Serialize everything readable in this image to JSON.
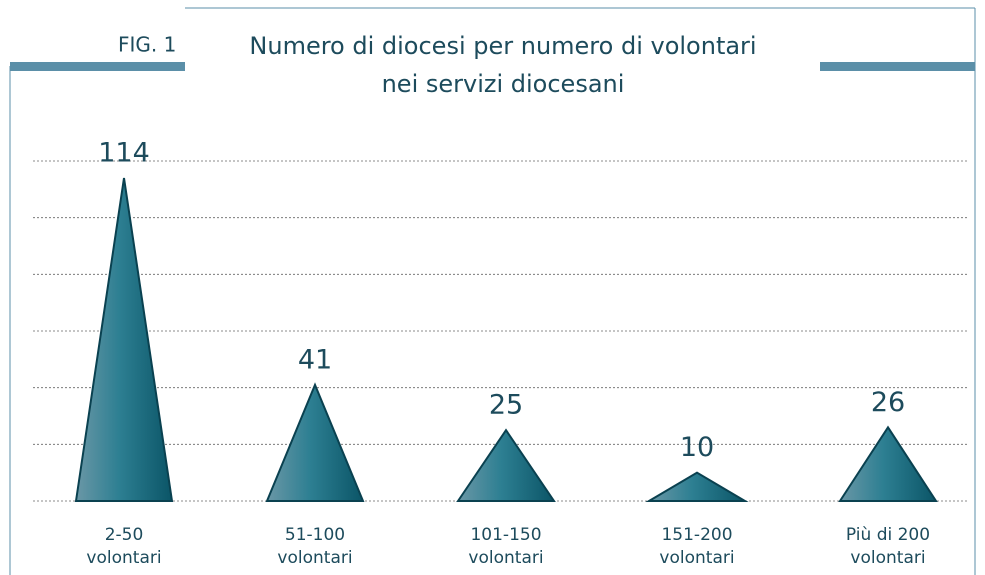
{
  "chart_data": {
    "type": "triangle-bar",
    "figure_label": "FIG. 1",
    "title": [
      "Numero di diocesi per numero di volontari",
      "nei servizi diocesani"
    ],
    "categories": [
      [
        "2-50",
        "volontari"
      ],
      [
        "51-100",
        "volontari"
      ],
      [
        "101-150",
        "volontari"
      ],
      [
        "151-200",
        "volontari"
      ],
      [
        "Più di 200",
        "volontari"
      ]
    ],
    "values": [
      114,
      41,
      25,
      10,
      26
    ],
    "color": "#1f6f82",
    "ylim": [
      0,
      120
    ],
    "yticks": [
      0,
      20,
      40,
      60,
      80,
      100,
      120
    ],
    "grid": true
  }
}
